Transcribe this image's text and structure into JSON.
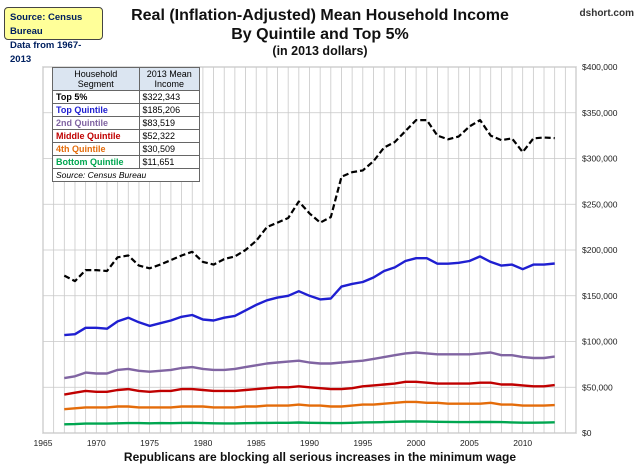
{
  "source_box": {
    "line1": "Source: Census Bureau",
    "line2": "Data from 1967-2013"
  },
  "header": {
    "title1": "Real (Inflation-Adjusted) Mean Household Income",
    "title2": "By Quintile and Top 5%",
    "subtitle": "(in 2013 dollars)",
    "watermark": "dshort.com"
  },
  "footer": {
    "text": "Republicans are blocking all serious increases in the minimum wage"
  },
  "table": {
    "header_segment": [
      "Household",
      "Segment"
    ],
    "header_value": [
      "2013 Mean",
      "Income"
    ],
    "rows": [
      {
        "name": "Top 5%",
        "value": "$322,343",
        "color": "#000000"
      },
      {
        "name": "Top Quintile",
        "value": "$185,206",
        "color": "#1f1fd1"
      },
      {
        "name": "2nd Quintile",
        "value": "$83,519",
        "color": "#8064a2"
      },
      {
        "name": "Middle Quintile",
        "value": "$52,322",
        "color": "#c00000"
      },
      {
        "name": "4th Quintile",
        "value": "$30,509",
        "color": "#e46c0a"
      },
      {
        "name": "Bottom Quintile",
        "value": "$11,651",
        "color": "#00a650"
      }
    ],
    "source_note": "Source: Census Bureau"
  },
  "chart_data": {
    "type": "line",
    "x": [
      1967,
      1968,
      1969,
      1970,
      1971,
      1972,
      1973,
      1974,
      1975,
      1976,
      1977,
      1978,
      1979,
      1980,
      1981,
      1982,
      1983,
      1984,
      1985,
      1986,
      1987,
      1988,
      1989,
      1990,
      1991,
      1992,
      1993,
      1994,
      1995,
      1996,
      1997,
      1998,
      1999,
      2000,
      2001,
      2002,
      2003,
      2004,
      2005,
      2006,
      2007,
      2008,
      2009,
      2010,
      2011,
      2012,
      2013
    ],
    "xlim": [
      1965,
      2015
    ],
    "x_ticks": [
      1965,
      1970,
      1975,
      1980,
      1985,
      1990,
      1995,
      2000,
      2005,
      2010
    ],
    "ylim": [
      0,
      400000
    ],
    "y_ticks": [
      0,
      50000,
      100000,
      150000,
      200000,
      250000,
      300000,
      350000,
      400000
    ],
    "y_tick_labels": [
      "$0",
      "$50,000",
      "$100,000",
      "$150,000",
      "$200,000",
      "$250,000",
      "$300,000",
      "$350,000",
      "$400,000"
    ],
    "grid": true,
    "series": [
      {
        "name": "Top 5%",
        "color": "#000000",
        "dashed": true,
        "values": [
          172000,
          166000,
          178000,
          178000,
          177000,
          192000,
          194000,
          183000,
          180000,
          184000,
          189000,
          194000,
          198000,
          187000,
          184000,
          190000,
          193000,
          200000,
          210000,
          225000,
          230000,
          235000,
          253000,
          240000,
          230000,
          236000,
          280000,
          285000,
          287000,
          297000,
          312000,
          318000,
          330000,
          342000,
          342000,
          325000,
          321000,
          324000,
          335000,
          342000,
          325000,
          320000,
          322000,
          307000,
          322000,
          323000,
          322343
        ]
      },
      {
        "name": "Top Quintile",
        "color": "#1f1fd1",
        "dashed": false,
        "values": [
          107000,
          108000,
          115000,
          115000,
          114000,
          122000,
          126000,
          121000,
          117000,
          120000,
          123000,
          127000,
          129000,
          124000,
          123000,
          126000,
          128000,
          134000,
          140000,
          145000,
          148000,
          150000,
          155000,
          150000,
          146000,
          147000,
          160000,
          163000,
          165000,
          170000,
          177000,
          181000,
          188000,
          191000,
          191000,
          185000,
          185000,
          186000,
          188000,
          193000,
          187000,
          183000,
          184000,
          179000,
          184000,
          184000,
          185206
        ]
      },
      {
        "name": "2nd Quintile",
        "color": "#8064a2",
        "dashed": false,
        "values": [
          60000,
          62000,
          66000,
          65000,
          65000,
          69000,
          70000,
          68000,
          67000,
          68000,
          69000,
          71000,
          72000,
          70000,
          69000,
          69000,
          70000,
          72000,
          74000,
          76000,
          77000,
          78000,
          79000,
          77000,
          76000,
          76000,
          77000,
          78000,
          79000,
          81000,
          83000,
          85000,
          87000,
          88000,
          87000,
          86000,
          86000,
          86000,
          86000,
          87000,
          88000,
          85000,
          85000,
          83000,
          82000,
          82000,
          83519
        ]
      },
      {
        "name": "Middle Quintile",
        "color": "#c00000",
        "dashed": false,
        "values": [
          42000,
          44000,
          46000,
          45000,
          45000,
          47000,
          48000,
          46000,
          45000,
          46000,
          46000,
          48000,
          48000,
          47000,
          46000,
          46000,
          46000,
          47000,
          48000,
          49000,
          50000,
          50000,
          51000,
          50000,
          49000,
          48000,
          48000,
          49000,
          51000,
          52000,
          53000,
          54000,
          56000,
          56000,
          55000,
          54000,
          54000,
          54000,
          54000,
          55000,
          55000,
          53000,
          53000,
          52000,
          51000,
          51000,
          52322
        ]
      },
      {
        "name": "4th Quintile",
        "color": "#e46c0a",
        "dashed": false,
        "values": [
          26000,
          27000,
          28000,
          28000,
          28000,
          29000,
          29000,
          28000,
          28000,
          28000,
          28000,
          29000,
          29000,
          29000,
          28000,
          28000,
          28000,
          29000,
          29000,
          30000,
          30000,
          30000,
          31000,
          30000,
          30000,
          29000,
          29000,
          30000,
          31000,
          31000,
          32000,
          33000,
          34000,
          34000,
          33000,
          33000,
          32000,
          32000,
          32000,
          32000,
          33000,
          31000,
          31000,
          30000,
          30000,
          30000,
          30509
        ]
      },
      {
        "name": "Bottom Quintile",
        "color": "#00a650",
        "dashed": false,
        "values": [
          9500,
          9700,
          10300,
          10300,
          10300,
          10600,
          10800,
          10800,
          10600,
          10800,
          10700,
          11000,
          11100,
          10800,
          10600,
          10500,
          10500,
          10700,
          10900,
          11000,
          11100,
          11200,
          11500,
          11200,
          11000,
          10800,
          10800,
          11100,
          11600,
          11700,
          11900,
          12200,
          12600,
          12700,
          12500,
          12200,
          12100,
          11900,
          11900,
          12000,
          12100,
          11900,
          11600,
          11300,
          11300,
          11400,
          11651
        ]
      }
    ]
  }
}
